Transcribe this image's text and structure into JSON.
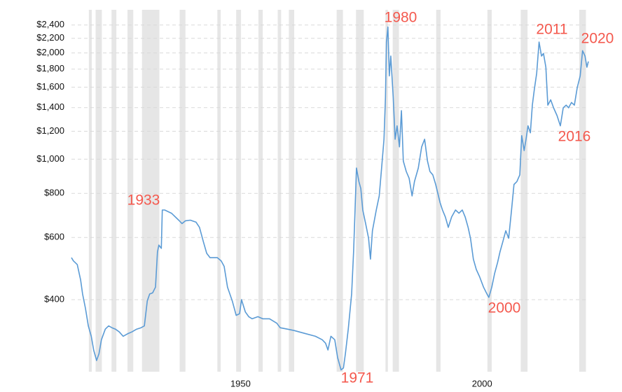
{
  "chart_data": {
    "type": "line",
    "log_scale": true,
    "grid": true,
    "xlim": [
      1915,
      2022
    ],
    "xticks": [
      1950,
      2000
    ],
    "ylim": [
      250,
      2650
    ],
    "yticks": [
      {
        "value": 400,
        "label": "$400"
      },
      {
        "value": 600,
        "label": "$600"
      },
      {
        "value": 800,
        "label": "$800"
      },
      {
        "value": 1000,
        "label": "$1,000"
      },
      {
        "value": 1200,
        "label": "$1,200"
      },
      {
        "value": 1400,
        "label": "$1,400"
      },
      {
        "value": 1600,
        "label": "$1,600"
      },
      {
        "value": 1800,
        "label": "$1,800"
      },
      {
        "value": 2000,
        "label": "$2,000"
      },
      {
        "value": 2200,
        "label": "$2,200"
      },
      {
        "value": 2400,
        "label": "$2,400"
      }
    ],
    "recession_color": "#e6e6e6",
    "recessions": [
      [
        1918.6,
        1919.2
      ],
      [
        1920.0,
        1921.3
      ],
      [
        1923.3,
        1924.3
      ],
      [
        1926.6,
        1927.8
      ],
      [
        1929.6,
        1933.2
      ],
      [
        1937.4,
        1938.6
      ],
      [
        1945.2,
        1945.9
      ],
      [
        1949.1,
        1950.1
      ],
      [
        1953.7,
        1954.6
      ],
      [
        1957.7,
        1958.4
      ],
      [
        1960.0,
        1961.1
      ],
      [
        1969.9,
        1971.2
      ],
      [
        1973.9,
        1975.5
      ],
      [
        1980.0,
        1980.5
      ],
      [
        1981.5,
        1982.8
      ],
      [
        1990.5,
        1991.4
      ],
      [
        2001.1,
        2002.0
      ],
      [
        2008.0,
        2009.4
      ],
      [
        2020.1,
        2021.5
      ]
    ],
    "annotations": [
      "1933",
      "1971",
      "1980",
      "2000",
      "2011",
      "2016",
      "2020"
    ],
    "series": [
      {
        "color": "#5b9bd5",
        "x": [
          1915.0,
          1915.4,
          1916.2,
          1916.9,
          1917.3,
          1917.9,
          1918.5,
          1919.1,
          1919.6,
          1920.2,
          1920.7,
          1921.2,
          1922.0,
          1922.7,
          1923.4,
          1924.1,
          1924.9,
          1925.7,
          1926.6,
          1927.5,
          1928.5,
          1929.4,
          1930.1,
          1930.7,
          1931.2,
          1931.8,
          1932.4,
          1932.8,
          1933.1,
          1933.6,
          1933.8,
          1934.3,
          1935.7,
          1937.2,
          1937.9,
          1938.6,
          1939.6,
          1940.8,
          1941.5,
          1942.3,
          1943.0,
          1943.7,
          1945.2,
          1946.0,
          1946.6,
          1947.3,
          1948.3,
          1949.1,
          1949.8,
          1950.2,
          1951.0,
          1951.7,
          1952.4,
          1953.6,
          1954.6,
          1956.0,
          1957.5,
          1958.2,
          1959.7,
          1961.1,
          1963.3,
          1965.5,
          1966.9,
          1967.6,
          1968.1,
          1968.7,
          1969.5,
          1970.1,
          1970.8,
          1971.3,
          1971.7,
          1972.3,
          1973.0,
          1973.4,
          1973.7,
          1974.0,
          1974.5,
          1974.9,
          1975.3,
          1975.9,
          1976.5,
          1976.9,
          1977.3,
          1978.1,
          1978.7,
          1979.2,
          1979.7,
          1980.0,
          1980.2,
          1980.5,
          1980.8,
          1981.1,
          1981.6,
          1982.0,
          1982.4,
          1982.9,
          1983.3,
          1983.7,
          1984.3,
          1984.9,
          1985.5,
          1986.0,
          1986.8,
          1987.5,
          1988.1,
          1988.7,
          1989.2,
          1989.8,
          1990.4,
          1991.3,
          1991.8,
          1992.4,
          1993.0,
          1993.7,
          1994.5,
          1995.2,
          1995.9,
          1996.5,
          1997.1,
          1997.6,
          1998.2,
          1998.8,
          1999.5,
          2000.3,
          2001.0,
          2001.4,
          2002.0,
          2002.6,
          2003.2,
          2003.7,
          2004.3,
          2004.9,
          2005.5,
          2006.1,
          2006.6,
          2007.2,
          2007.8,
          2008.2,
          2008.7,
          2009.1,
          2009.5,
          2010.0,
          2010.4,
          2010.8,
          2011.3,
          2011.8,
          2012.3,
          2012.7,
          2013.2,
          2013.6,
          2014.2,
          2014.8,
          2015.5,
          2016.2,
          2016.8,
          2017.4,
          2017.9,
          2018.5,
          2019.1,
          2019.7,
          2020.3,
          2020.8,
          2021.3,
          2021.7,
          2022.0
        ],
        "values": [
          526,
          515,
          503,
          455,
          415,
          378,
          337,
          315,
          288,
          269,
          281,
          308,
          330,
          337,
          333,
          330,
          324,
          315,
          320,
          324,
          330,
          333,
          337,
          397,
          415,
          418,
          434,
          546,
          571,
          559,
          718,
          718,
          703,
          672,
          657,
          669,
          672,
          663,
          641,
          584,
          541,
          526,
          526,
          515,
          497,
          434,
          396,
          361,
          365,
          400,
          369,
          358,
          353,
          358,
          353,
          353,
          343,
          333,
          330,
          327,
          321,
          315,
          308,
          301,
          288,
          315,
          308,
          274,
          253,
          256,
          281,
          330,
          415,
          546,
          718,
          944,
          864,
          826,
          718,
          657,
          597,
          521,
          627,
          718,
          787,
          944,
          1139,
          1495,
          2148,
          2369,
          1722,
          1960,
          1495,
          1139,
          1243,
          1084,
          1373,
          988,
          923,
          883,
          787,
          864,
          944,
          1084,
          1139,
          988,
          923,
          903,
          848,
          753,
          718,
          686,
          641,
          686,
          718,
          703,
          718,
          686,
          641,
          597,
          521,
          487,
          464,
          434,
          415,
          406,
          434,
          475,
          509,
          546,
          584,
          627,
          597,
          718,
          848,
          864,
          903,
          1166,
          1058,
          1139,
          1243,
          1188,
          1423,
          1574,
          1752,
          2148,
          1960,
          1993,
          1822,
          1423,
          1473,
          1398,
          1330,
          1243,
          1398,
          1423,
          1398,
          1448,
          1423,
          1595,
          1722,
          2030,
          1960,
          1822,
          1892
        ]
      }
    ]
  }
}
